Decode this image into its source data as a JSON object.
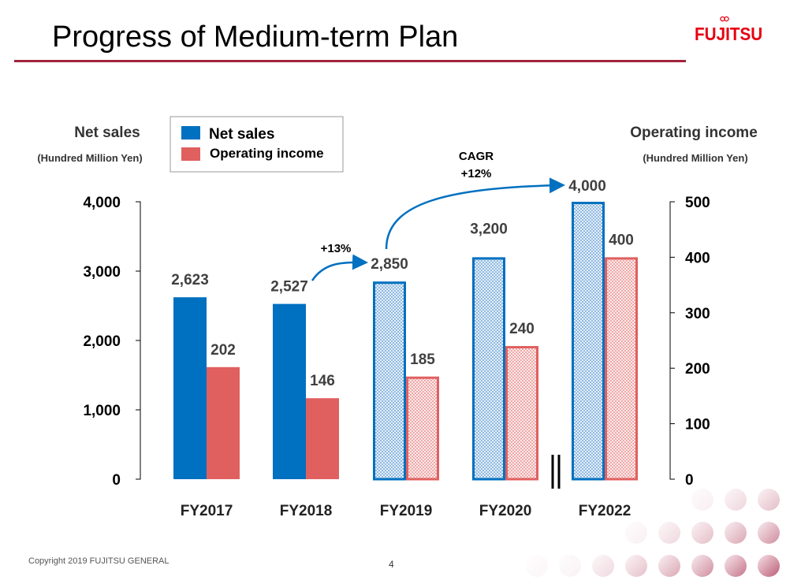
{
  "header": {
    "title": "Progress of Medium-term Plan",
    "logo": "FUJITSU"
  },
  "footer": {
    "copyright": "Copyright 2019 FUJITSU GENERAL",
    "page": "4"
  },
  "colors": {
    "net_sales": "#0070c0",
    "operating_income": "#e06060",
    "rule": "#a0243c",
    "logo": "#e60012"
  },
  "chart_data": {
    "type": "bar",
    "categories": [
      "FY2017",
      "FY2018",
      "FY2019",
      "FY2020",
      "FY2022"
    ],
    "forecast_from_index": 2,
    "series": [
      {
        "name": "Net sales",
        "axis": "left",
        "values": [
          2623,
          2527,
          2850,
          3200,
          4000
        ],
        "labels": [
          "2,623",
          "2,527",
          "2,850",
          "3,200",
          "4,000"
        ]
      },
      {
        "name": "Operating income",
        "axis": "right",
        "values": [
          202,
          146,
          185,
          240,
          400
        ],
        "labels": [
          "202",
          "146",
          "185",
          "240",
          "400"
        ]
      }
    ],
    "left_axis": {
      "title": "Net sales",
      "unit": "(Hundred Million Yen)",
      "range": [
        0,
        4000
      ],
      "ticks": [
        "0",
        "1,000",
        "2,000",
        "3,000",
        "4,000"
      ]
    },
    "right_axis": {
      "title": "Operating income",
      "unit": "(Hundred Million Yen)",
      "range": [
        0,
        500
      ],
      "ticks": [
        "0",
        "100",
        "200",
        "300",
        "400",
        "500"
      ]
    },
    "legend": {
      "position": "top-left",
      "entries": [
        "Net sales",
        "Operating income"
      ]
    },
    "annotations": {
      "growth_2018_2019": "+13%",
      "cagr_label": "CAGR",
      "cagr_value": "+12%"
    },
    "axis_break_between": [
      "FY2020",
      "FY2022"
    ],
    "grid": false
  }
}
